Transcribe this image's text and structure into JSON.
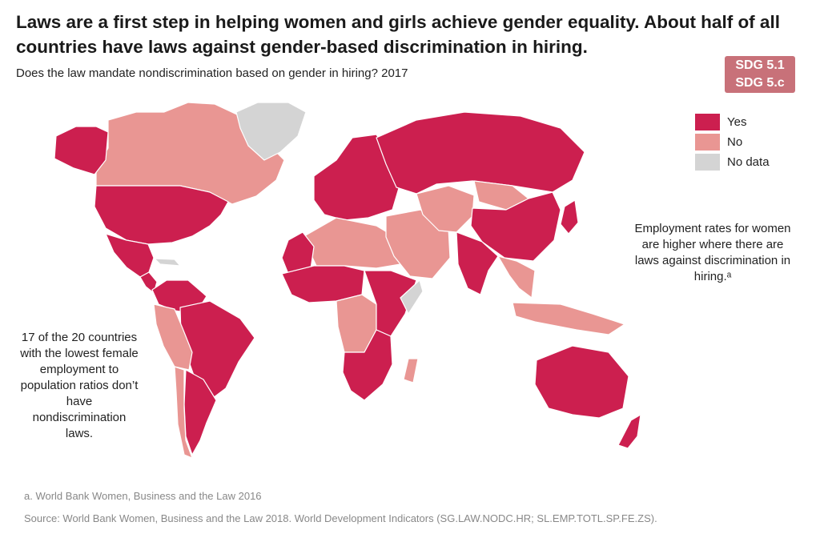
{
  "title": "Laws are a first step in helping women and girls achieve gender equality. About half of all countries have laws against gender-based discrimination in hiring.",
  "subtitle": "Does the law mandate nondiscrimination based on gender in hiring? 2017",
  "badge": {
    "line1": "SDG 5.1",
    "line2": "SDG 5.c"
  },
  "legend": [
    {
      "label": "Yes",
      "color": "#cc1f4f"
    },
    {
      "label": "No",
      "color": "#e99693"
    },
    {
      "label": "No data",
      "color": "#d4d4d4"
    }
  ],
  "annotation_right": "Employment rates for women are higher where there are laws against discrimination in hiring.ᵃ",
  "annotation_left": "17 of the 20 countries with the lowest female employment to population ratios don’t have nondiscrimination laws.",
  "footnote": "a. World Bank Women, Business and the Law 2016",
  "source": "Source: World Bank Women, Business and the Law 2018. World Development Indicators (SG.LAW.NODC.HR; SL.EMP.TOTL.SP.FE.ZS).",
  "map_data": {
    "regions": [
      {
        "name": "Canada",
        "status": "No"
      },
      {
        "name": "Alaska",
        "status": "Yes"
      },
      {
        "name": "Greenland",
        "status": "No data"
      },
      {
        "name": "United States",
        "status": "Yes"
      },
      {
        "name": "Mexico",
        "status": "Yes"
      },
      {
        "name": "Central America",
        "status": "Yes"
      },
      {
        "name": "South America north",
        "status": "Yes"
      },
      {
        "name": "Brazil",
        "status": "Yes"
      },
      {
        "name": "Peru and Bolivia",
        "status": "No"
      },
      {
        "name": "Argentina",
        "status": "Yes"
      },
      {
        "name": "Chile",
        "status": "No"
      },
      {
        "name": "Europe",
        "status": "Yes"
      },
      {
        "name": "Russia",
        "status": "Yes"
      },
      {
        "name": "North Africa",
        "status": "No"
      },
      {
        "name": "Morocco",
        "status": "Yes"
      },
      {
        "name": "West Africa",
        "status": "Yes"
      },
      {
        "name": "Central Africa",
        "status": "No"
      },
      {
        "name": "East Africa",
        "status": "Yes"
      },
      {
        "name": "Southern Africa",
        "status": "Yes"
      },
      {
        "name": "Middle East",
        "status": "No"
      },
      {
        "name": "Central Asia",
        "status": "No"
      },
      {
        "name": "Mongolia",
        "status": "No"
      },
      {
        "name": "China",
        "status": "Yes"
      },
      {
        "name": "India",
        "status": "Yes"
      },
      {
        "name": "Southeast Asia",
        "status": "No"
      },
      {
        "name": "Japan",
        "status": "Yes"
      },
      {
        "name": "Indonesia",
        "status": "No"
      },
      {
        "name": "Australia",
        "status": "Yes"
      },
      {
        "name": "New Zealand",
        "status": "Yes"
      },
      {
        "name": "Madagascar",
        "status": "No"
      },
      {
        "name": "Somalia",
        "status": "No data"
      },
      {
        "name": "Cuba",
        "status": "No data"
      }
    ]
  }
}
